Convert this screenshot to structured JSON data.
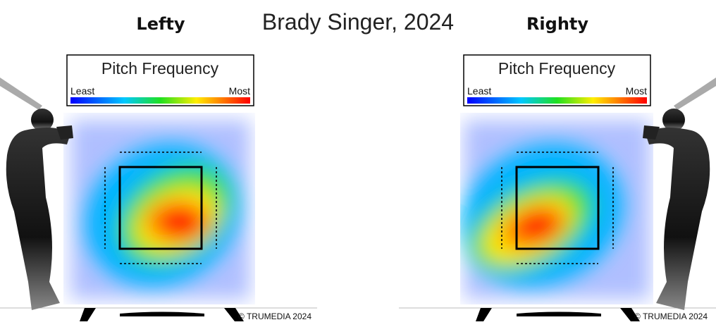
{
  "title": "Brady Singer, 2024",
  "panels": [
    {
      "label": "Lefty",
      "legend": {
        "title": "Pitch Frequency",
        "least": "Least",
        "most": "Most"
      },
      "credit": "© TRUMEDIA 2024"
    },
    {
      "label": "Righty",
      "legend": {
        "title": "Pitch Frequency",
        "least": "Least",
        "most": "Most"
      },
      "credit": "© TRUMEDIA 2024"
    }
  ]
}
